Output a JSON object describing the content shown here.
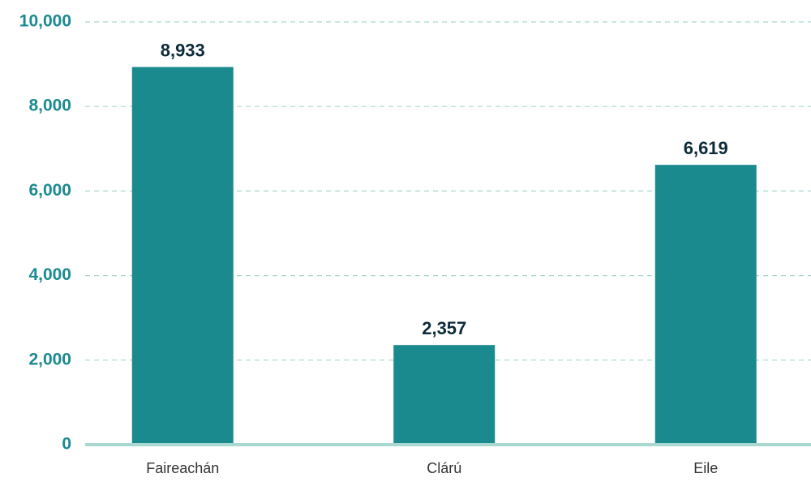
{
  "chart_data": {
    "type": "bar",
    "categories": [
      "Faireachán",
      "Clárú",
      "Eile"
    ],
    "values": [
      8933,
      2357,
      6619
    ],
    "value_labels": [
      "8,933",
      "2,357",
      "6,619"
    ],
    "color": "#1b8a8f",
    "ylim": [
      0,
      10000
    ],
    "yticks": [
      0,
      {
        "value": 2000,
        "label": "2,000"
      },
      {
        "value": 4000,
        "label": "4,000"
      },
      {
        "value": 6000,
        "label": "6,000"
      },
      {
        "value": 8000,
        "label": "8,000"
      },
      {
        "value": 10000,
        "label": "10,000"
      }
    ],
    "grid": true
  }
}
